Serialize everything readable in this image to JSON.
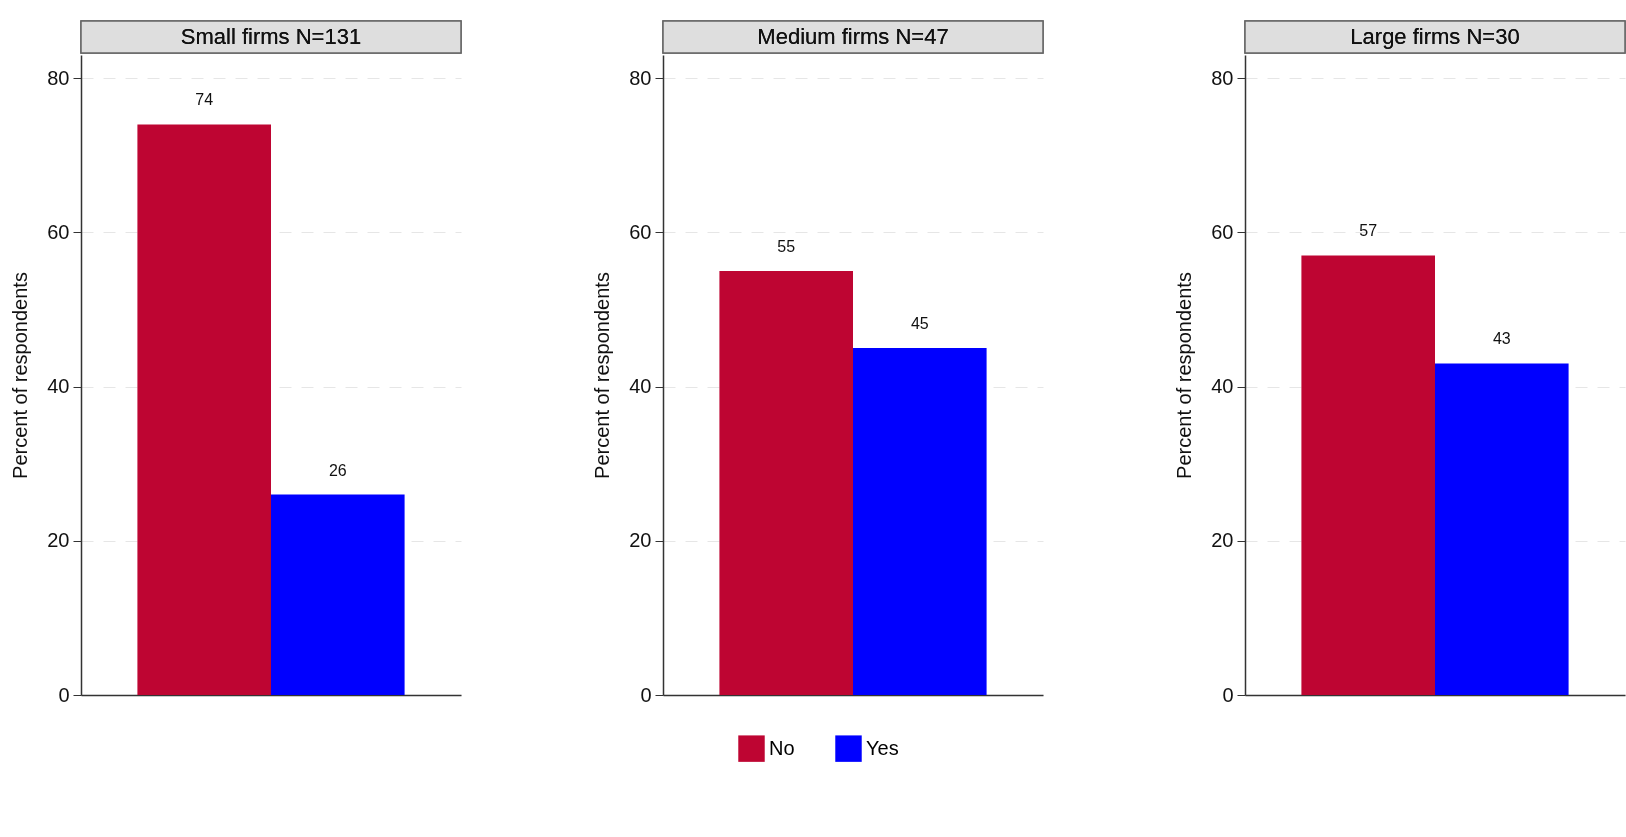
{
  "chart_data": [
    {
      "type": "bar",
      "title": "Small firms N=131",
      "ylabel": "Percent of respondents",
      "categories": [
        null
      ],
      "series": [
        {
          "name": "No",
          "color": "#be0532",
          "values": [
            74
          ]
        },
        {
          "name": "Yes",
          "color": "#0000ff",
          "values": [
            26
          ]
        }
      ],
      "ylim": [
        0,
        83
      ],
      "yticks": [
        0,
        20,
        40,
        60,
        80
      ],
      "grid": "y",
      "data_labels": true,
      "legend": "bottom"
    },
    {
      "type": "bar",
      "title": "Medium firms N=47",
      "ylabel": "Percent of respondents",
      "categories": [
        null
      ],
      "series": [
        {
          "name": "No",
          "color": "#be0532",
          "values": [
            55
          ]
        },
        {
          "name": "Yes",
          "color": "#0000ff",
          "values": [
            45
          ]
        }
      ],
      "ylim": [
        0,
        83
      ],
      "yticks": [
        0,
        20,
        40,
        60,
        80
      ],
      "grid": "y",
      "data_labels": true,
      "legend": "bottom"
    },
    {
      "type": "bar",
      "title": "Large firms N=30",
      "ylabel": "Percent of respondents",
      "categories": [
        null
      ],
      "series": [
        {
          "name": "No",
          "color": "#be0532",
          "values": [
            57
          ]
        },
        {
          "name": "Yes",
          "color": "#0000ff",
          "values": [
            43
          ]
        }
      ],
      "ylim": [
        0,
        83
      ],
      "yticks": [
        0,
        20,
        40,
        60,
        80
      ],
      "grid": "y",
      "data_labels": true,
      "legend": "bottom"
    }
  ]
}
